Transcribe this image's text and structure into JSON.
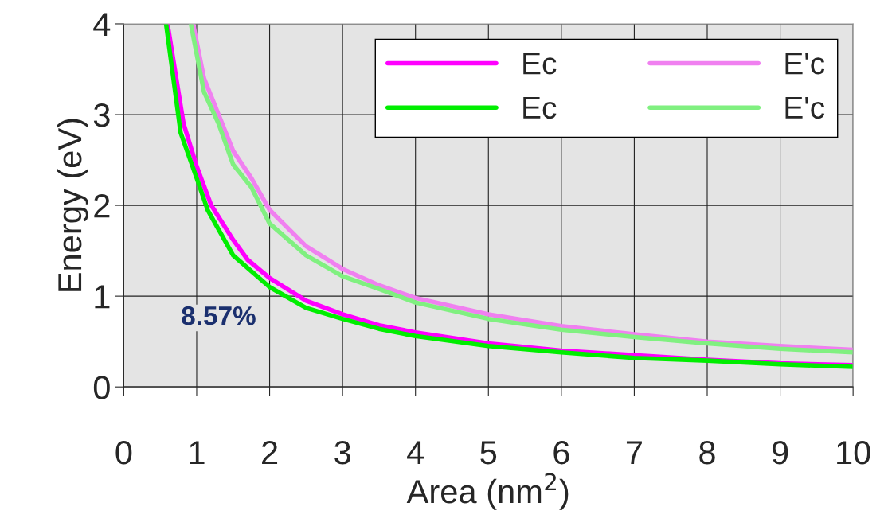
{
  "chart_data": {
    "type": "line",
    "xlabel": "Area (nm$^{2}$)",
    "ylabel": "Energy (eV)",
    "xlim": [
      0,
      10
    ],
    "ylim": [
      0,
      4
    ],
    "xticks": [
      0,
      1,
      2,
      3,
      4,
      5,
      6,
      7,
      8,
      9,
      10
    ],
    "yticks": [
      0,
      1,
      2,
      3,
      4
    ],
    "grid": true,
    "legend": "top right",
    "annotations": [
      "8.57%"
    ],
    "series": [
      {
        "name": "Ec",
        "color": "#ff00ff",
        "x": [
          0.6,
          0.82,
          1.0,
          1.2,
          1.5,
          1.7,
          2,
          2.5,
          3,
          3.5,
          4,
          5,
          6,
          7,
          8,
          9,
          10
        ],
        "values": [
          4,
          2.9,
          2.43,
          2.0,
          1.62,
          1.4,
          1.2,
          0.95,
          0.8,
          0.68,
          0.6,
          0.48,
          0.4,
          0.35,
          0.3,
          0.26,
          0.24
        ]
      },
      {
        "name": "Ec",
        "color": "#00ee00",
        "x": [
          0.58,
          0.78,
          1.0,
          1.15,
          1.5,
          2,
          2.5,
          3,
          3.5,
          4,
          5,
          6,
          7,
          8,
          9,
          10
        ],
        "values": [
          4,
          2.8,
          2.3,
          1.95,
          1.45,
          1.1,
          0.87,
          0.75,
          0.64,
          0.56,
          0.45,
          0.38,
          0.32,
          0.29,
          0.25,
          0.22
        ]
      },
      {
        "name": "E'c",
        "color": "#f080f0",
        "x": [
          0.95,
          1.1,
          1.3,
          1.5,
          1.75,
          2,
          2.5,
          3,
          3.5,
          4,
          5,
          6,
          7,
          8,
          9,
          10
        ],
        "values": [
          4,
          3.4,
          3.0,
          2.6,
          2.3,
          1.95,
          1.55,
          1.3,
          1.12,
          0.98,
          0.8,
          0.67,
          0.58,
          0.5,
          0.45,
          0.41
        ]
      },
      {
        "name": "E'c",
        "color": "#80f080",
        "x": [
          0.92,
          1.1,
          1.3,
          1.5,
          1.75,
          2,
          2.5,
          3,
          3.5,
          4,
          5,
          6,
          7,
          8,
          9,
          10
        ],
        "values": [
          4,
          3.25,
          2.9,
          2.45,
          2.2,
          1.8,
          1.45,
          1.22,
          1.08,
          0.93,
          0.75,
          0.63,
          0.55,
          0.48,
          0.42,
          0.38
        ]
      }
    ]
  }
}
